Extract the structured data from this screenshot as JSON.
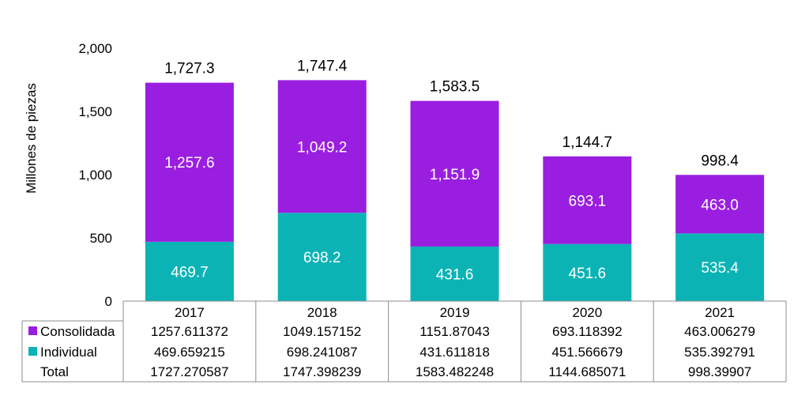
{
  "chart_data": {
    "type": "bar",
    "stacked": true,
    "ylabel": "Millones de piezas",
    "ylim": [
      0,
      2000
    ],
    "yticks": [
      0,
      500,
      1000,
      1500,
      2000
    ],
    "ytick_labels": [
      "0",
      "500",
      "1,000",
      "1,500",
      "2,000"
    ],
    "categories": [
      "2017",
      "2018",
      "2019",
      "2020",
      "2021"
    ],
    "series": [
      {
        "name": "Individual",
        "color": "#0BB3B5",
        "values": [
          469.659215,
          698.241087,
          431.611818,
          451.566679,
          535.392791
        ],
        "labels": [
          "469.7",
          "698.2",
          "431.6",
          "451.6",
          "535.4"
        ],
        "table_values": [
          "469.659215",
          "698.241087",
          "431.611818",
          "451.566679",
          "535.392791"
        ]
      },
      {
        "name": "Consolidada",
        "color": "#9A1EE0",
        "values": [
          1257.611372,
          1049.157152,
          1151.87043,
          693.118392,
          463.006279
        ],
        "labels": [
          "1,257.6",
          "1,049.2",
          "1,151.9",
          "693.1",
          "463.0"
        ],
        "table_values": [
          "1257.611372",
          "1049.157152",
          "1151.87043",
          "693.118392",
          "463.006279"
        ]
      }
    ],
    "totals": {
      "name": "Total",
      "values": [
        1727.270587,
        1747.398239,
        1583.482248,
        1144.685071,
        998.39907
      ],
      "labels": [
        "1,727.3",
        "1,747.4",
        "1,583.5",
        "1,144.7",
        "998.4"
      ],
      "table_values": [
        "1727.270587",
        "1747.398239",
        "1583.482248",
        "1144.685071",
        "998.39907"
      ]
    },
    "table_row_order": [
      "Consolidada",
      "Individual",
      "Total"
    ],
    "legend_placement": "data-table",
    "grid": false
  }
}
